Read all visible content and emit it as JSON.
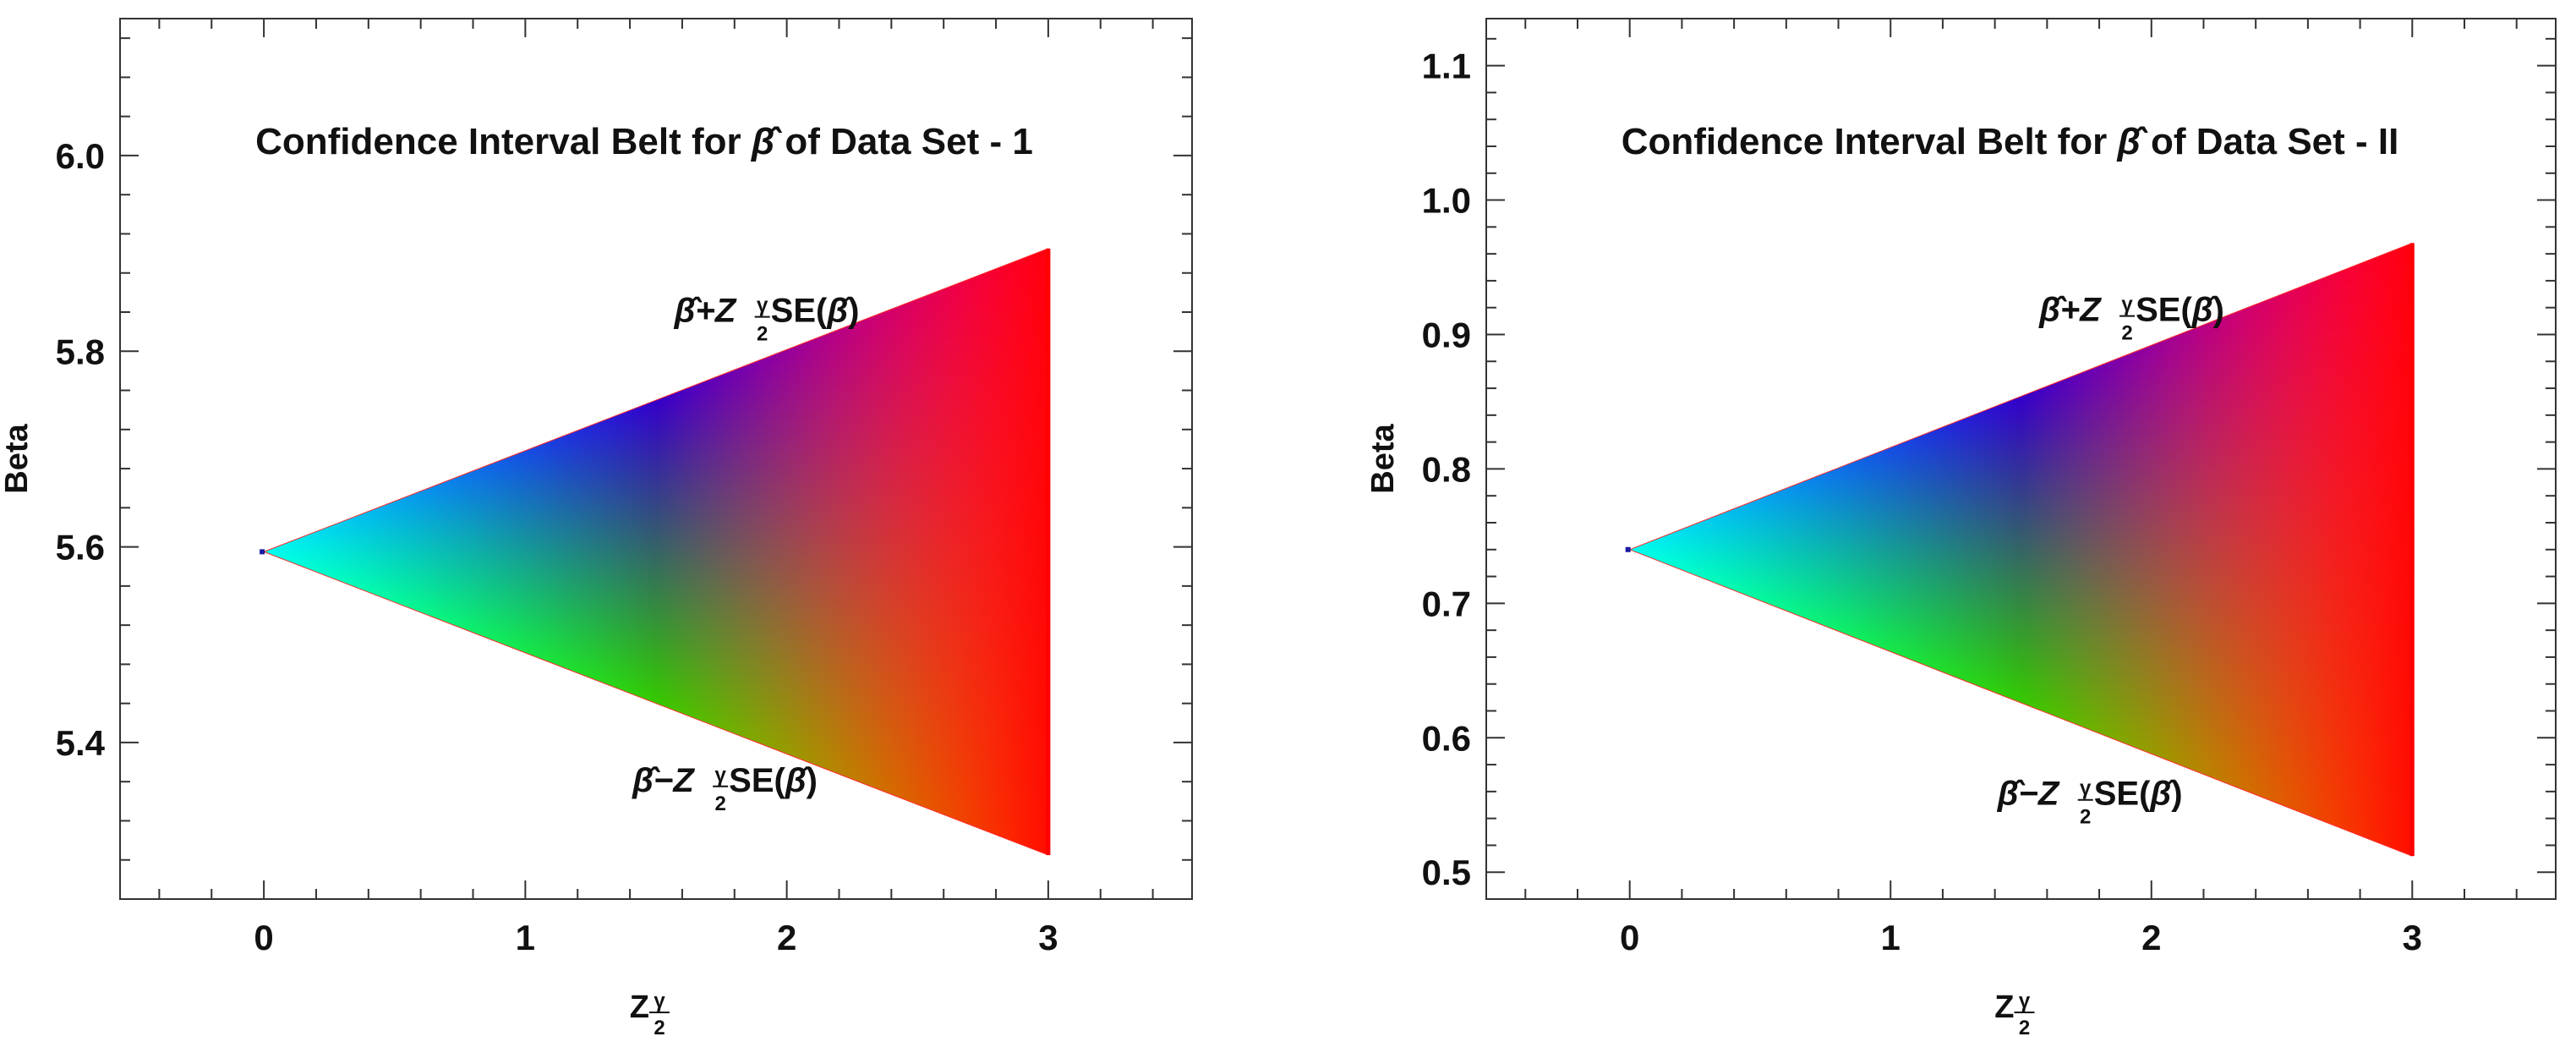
{
  "chart_data": [
    {
      "type": "area",
      "title_prefix": "Confidence Interval Belt for ",
      "title_symbol": "β̂",
      "title_suffix": " of Data Set - 1",
      "ylabel": "Beta",
      "xlabel_main": "Z",
      "xlabel_frac_num": "γ",
      "xlabel_frac_den": "2",
      "xlim": [
        -0.55,
        3.55
      ],
      "ylim": [
        5.24,
        6.14
      ],
      "xticks": [
        0,
        1,
        2,
        3
      ],
      "xtick_labels": [
        "0",
        "1",
        "2",
        "3"
      ],
      "yticks": [
        5.4,
        5.6,
        5.8,
        6.0
      ],
      "ytick_labels": [
        "5.4",
        "5.6",
        "5.8",
        "6.0"
      ],
      "estimate": 5.595,
      "upper_at_x3": 5.905,
      "lower_at_x3": 5.285,
      "upper_label": {
        "hat": "β̂",
        "plus": "+Z",
        "sub_num": "γ",
        "sub_den": "2",
        "se": " SE(",
        "se_hat": "β̂",
        "close": ")",
        "anchor_x": 1.57,
        "anchor_y": 5.83
      },
      "lower_label": {
        "hat": "β̂",
        "minus": "−Z",
        "sub_num": "γ",
        "sub_den": "2",
        "se": " SE(",
        "se_hat": "β̂",
        "close": ")",
        "anchor_x": 1.41,
        "anchor_y": 5.35
      },
      "colors": {
        "apex": "#00ffee",
        "upper_mid": "#0000ff",
        "upper_far": "#ff00ff",
        "lower_mid": "#00ff00",
        "lower_far": "#ffff00",
        "right": "#ff0000"
      }
    },
    {
      "type": "area",
      "title_prefix": "Confidence Interval Belt for ",
      "title_symbol": "β̂",
      "title_suffix": " of Data Set - II",
      "ylabel": "Beta",
      "xlabel_main": "Z",
      "xlabel_frac_num": "γ",
      "xlabel_frac_den": "2",
      "xlim": [
        -0.55,
        3.55
      ],
      "ylim": [
        0.48,
        1.135
      ],
      "xticks": [
        0,
        1,
        2,
        3
      ],
      "xtick_labels": [
        "0",
        "1",
        "2",
        "3"
      ],
      "yticks": [
        0.5,
        0.6,
        0.7,
        0.8,
        0.9,
        1.0,
        1.1
      ],
      "ytick_labels": [
        "0.5",
        "0.6",
        "0.7",
        "0.8",
        "0.9",
        "1.0",
        "1.1"
      ],
      "estimate": 0.74,
      "upper_at_x3": 0.968,
      "lower_at_x3": 0.512,
      "upper_label": {
        "hat": "β̂",
        "plus": "+Z",
        "sub_num": "γ",
        "sub_den": "2",
        "se": " SE(",
        "se_hat": "β̂",
        "close": ")",
        "anchor_x": 1.57,
        "anchor_y": 0.91
      },
      "lower_label": {
        "hat": "β̂",
        "minus": "−Z",
        "sub_num": "γ",
        "sub_den": "2",
        "se": " SE(",
        "se_hat": "β̂",
        "close": ")",
        "anchor_x": 1.41,
        "anchor_y": 0.55
      },
      "colors": {
        "apex": "#00ffee",
        "upper_mid": "#0000ff",
        "upper_far": "#ff00ff",
        "lower_mid": "#00ff00",
        "lower_far": "#ffff00",
        "right": "#ff0000"
      }
    }
  ]
}
